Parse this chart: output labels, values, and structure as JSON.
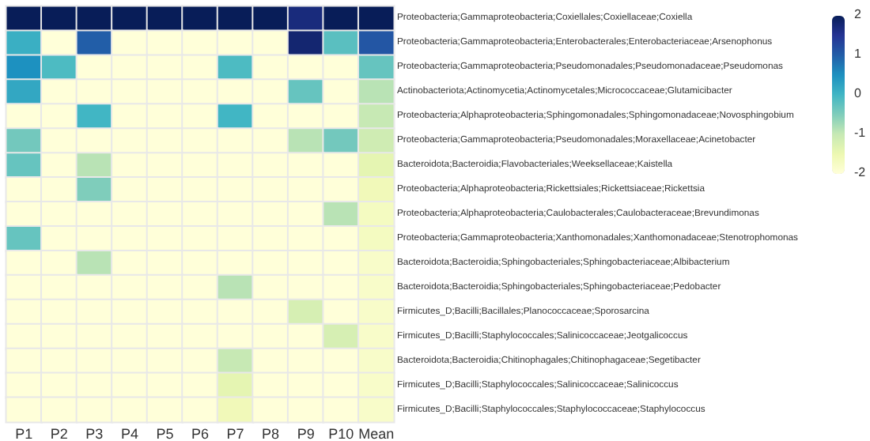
{
  "chart_data": {
    "type": "heatmap",
    "categories": [
      "P1",
      "P2",
      "P3",
      "P4",
      "P5",
      "P6",
      "P7",
      "P8",
      "P9",
      "P10",
      "Mean"
    ],
    "y_categories": [
      "Proteobacteria;Gammaproteobacteria;Coxiellales;Coxiellaceae;Coxiella",
      "Proteobacteria;Gammaproteobacteria;Enterobacterales;Enterobacteriaceae;Arsenophonus",
      "Proteobacteria;Gammaproteobacteria;Pseudomonadales;Pseudomonadaceae;Pseudomonas",
      "Actinobacteriota;Actinomycetia;Actinomycetales;Micrococcaceae;Glutamicibacter",
      "Proteobacteria;Alphaproteobacteria;Sphingomonadales;Sphingomonadaceae;Novosphingobium",
      "Proteobacteria;Gammaproteobacteria;Pseudomonadales;Moraxellaceae;Acinetobacter",
      "Bacteroidota;Bacteroidia;Flavobacteriales;Weeksellaceae;Kaistella",
      "Proteobacteria;Alphaproteobacteria;Rickettsiales;Rickettsiaceae;Rickettsia",
      "Proteobacteria;Alphaproteobacteria;Caulobacterales;Caulobacteraceae;Brevundimonas",
      "Proteobacteria;Gammaproteobacteria;Xanthomonadales;Xanthomonadaceae;Stenotrophomonas",
      "Bacteroidota;Bacteroidia;Sphingobacteriales;Sphingobacteriaceae;Albibacterium",
      "Bacteroidota;Bacteroidia;Sphingobacteriales;Sphingobacteriaceae;Pedobacter",
      "Firmicutes_D;Bacilli;Bacillales;Planococcaceae;Sporosarcina",
      "Firmicutes_D;Bacilli;Staphylococcales;Salinicoccaceae;Jeotgalicoccus",
      "Bacteroidota;Bacteroidia;Chitinophagales;Chitinophagaceae;Segetibacter",
      "Firmicutes_D;Bacilli;Staphylococcales;Salinicoccaceae;Salinicoccus",
      "Firmicutes_D;Bacilli;Staphylococcales;Staphylococcaceae;Staphylococcus"
    ],
    "cells": [
      [
        2,
        2,
        2,
        2,
        2,
        2,
        2,
        2,
        1.7,
        2,
        2
      ],
      [
        0.1,
        -2,
        1,
        -2,
        -2,
        -2,
        -2,
        -2,
        1.8,
        -0.2,
        1.1
      ],
      [
        0.5,
        -0.1,
        -2,
        -2,
        -2,
        -2,
        -0.1,
        -2,
        -2,
        -2,
        -0.3
      ],
      [
        0.2,
        -2,
        -2,
        -2,
        -2,
        -2,
        -2,
        -2,
        -0.3,
        -2,
        -0.9
      ],
      [
        -2,
        -2,
        0,
        -2,
        -2,
        -2,
        0,
        -2,
        -2,
        -2,
        -1
      ],
      [
        -0.4,
        -2,
        -2,
        -2,
        -2,
        -2,
        -2,
        -2,
        -0.9,
        -0.4,
        -1.1
      ],
      [
        -0.3,
        -2,
        -0.9,
        -2,
        -2,
        -2,
        -2,
        -2,
        -2,
        -2,
        -1.4
      ],
      [
        -2,
        -2,
        -0.5,
        -2,
        -2,
        -2,
        -2,
        -2,
        -2,
        -2,
        -1.6
      ],
      [
        -2,
        -2,
        -2,
        -2,
        -2,
        -2,
        -2,
        -2,
        -2,
        -0.9,
        -1.7
      ],
      [
        -0.3,
        -2,
        -2,
        -2,
        -2,
        -2,
        -2,
        -2,
        -2,
        -2,
        -1.7
      ],
      [
        -2,
        -2,
        -0.9,
        -2,
        -2,
        -2,
        -2,
        -2,
        -2,
        -2,
        -1.8
      ],
      [
        -2,
        -2,
        -2,
        -2,
        -2,
        -2,
        -0.9,
        -2,
        -2,
        -2,
        -1.8
      ],
      [
        -2,
        -2,
        -2,
        -2,
        -2,
        -2,
        -2,
        -2,
        -1.2,
        -2,
        -1.8
      ],
      [
        -2,
        -2,
        -2,
        -2,
        -2,
        -2,
        -2,
        -2,
        -2,
        -1.2,
        -1.8
      ],
      [
        -2,
        -2,
        -2,
        -2,
        -2,
        -2,
        -1,
        -2,
        -2,
        -2,
        -1.8
      ],
      [
        -2,
        -2,
        -2,
        -2,
        -2,
        -2,
        -1.4,
        -2,
        -2,
        -2,
        -1.8
      ],
      [
        -2,
        -2,
        -2,
        -2,
        -2,
        -2,
        -1.6,
        -2,
        -2,
        -2,
        -1.8
      ]
    ],
    "clim": [
      -2,
      2
    ],
    "cticks": [
      2,
      1,
      0,
      -1,
      -2
    ]
  }
}
